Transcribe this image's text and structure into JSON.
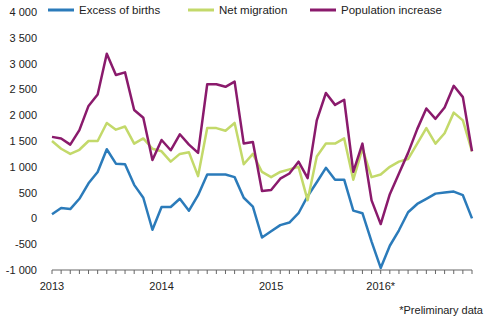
{
  "chart_data": {
    "type": "line",
    "categories": [
      "2013",
      null,
      null,
      null,
      null,
      null,
      null,
      null,
      null,
      null,
      null,
      null,
      "2014",
      null,
      null,
      null,
      null,
      null,
      null,
      null,
      null,
      null,
      null,
      null,
      "2015",
      null,
      null,
      null,
      null,
      null,
      null,
      null,
      null,
      null,
      null,
      null,
      "2016*",
      null,
      null,
      null,
      null,
      null,
      null,
      null,
      null,
      null,
      null
    ],
    "series": [
      {
        "name": "Excess of births",
        "color": "#2b7bba",
        "values": [
          80,
          200,
          180,
          380,
          680,
          900,
          1340,
          1060,
          1050,
          650,
          400,
          -220,
          220,
          220,
          380,
          150,
          450,
          850,
          850,
          850,
          800,
          400,
          230,
          -370,
          -250,
          -130,
          -80,
          100,
          430,
          700,
          980,
          750,
          750,
          150,
          100,
          -450,
          -960,
          -530,
          -230,
          120,
          280,
          380,
          480,
          500,
          520,
          450,
          0
        ]
      },
      {
        "name": "Net migration",
        "color": "#c3d96a",
        "values": [
          1500,
          1350,
          1250,
          1330,
          1500,
          1500,
          1850,
          1720,
          1780,
          1450,
          1550,
          1350,
          1300,
          1100,
          1250,
          1280,
          820,
          1750,
          1750,
          1700,
          1850,
          1050,
          1250,
          900,
          800,
          900,
          950,
          1000,
          350,
          1200,
          1450,
          1450,
          1550,
          750,
          1350,
          800,
          850,
          1000,
          1100,
          1150,
          1450,
          1750,
          1450,
          1650,
          2050,
          1900,
          1300
        ]
      },
      {
        "name": "Population increase",
        "color": "#8a1a6c",
        "values": [
          1580,
          1550,
          1430,
          1710,
          2180,
          2400,
          3190,
          2780,
          2830,
          2100,
          1950,
          1130,
          1520,
          1320,
          1630,
          1430,
          1270,
          2600,
          2600,
          2550,
          2650,
          1450,
          1480,
          530,
          550,
          770,
          870,
          1100,
          780,
          1900,
          2430,
          2200,
          2300,
          900,
          1450,
          350,
          -110,
          470,
          870,
          1270,
          1730,
          2130,
          1930,
          2150,
          2570,
          2350,
          1300
        ]
      }
    ],
    "ylim": [
      -1000,
      4000
    ],
    "yticks": [
      {
        "value": -1000,
        "label": "-1 000"
      },
      -500,
      0,
      500,
      {
        "value": 1000,
        "label": "1 000"
      },
      {
        "value": 1500,
        "label": "1 500"
      },
      {
        "value": 2000,
        "label": "2 000"
      },
      {
        "value": 2500,
        "label": "2 500"
      },
      {
        "value": 3000,
        "label": "3 000"
      },
      {
        "value": 3500,
        "label": "3 500"
      },
      {
        "value": 4000,
        "label": "4 000"
      }
    ],
    "grid": false,
    "legend": "top",
    "annotations": [
      "*Preliminary data"
    ]
  }
}
